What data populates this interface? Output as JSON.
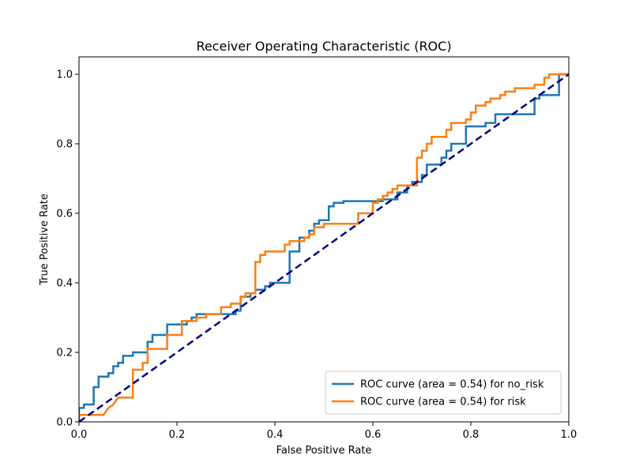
{
  "chart_data": {
    "type": "line",
    "title": "Receiver Operating Characteristic (ROC)",
    "xlabel": "False Positive Rate",
    "ylabel": "True Positive Rate",
    "xlim": [
      0.0,
      1.0
    ],
    "ylim": [
      0.0,
      1.05
    ],
    "xticks": [
      "0.0",
      "0.2",
      "0.4",
      "0.6",
      "0.8",
      "1.0"
    ],
    "yticks": [
      "0.0",
      "0.2",
      "0.4",
      "0.6",
      "0.8",
      "1.0"
    ],
    "grid": false,
    "legend_position": "lower-right",
    "series": [
      {
        "name": "ROC curve (area = 0.54) for no_risk",
        "color": "#1f77b4",
        "x": [
          0.0,
          0.0,
          0.01,
          0.01,
          0.03,
          0.03,
          0.04,
          0.04,
          0.06,
          0.06,
          0.07,
          0.07,
          0.08,
          0.08,
          0.09,
          0.09,
          0.11,
          0.11,
          0.14,
          0.14,
          0.15,
          0.15,
          0.18,
          0.18,
          0.22,
          0.22,
          0.23,
          0.23,
          0.24,
          0.24,
          0.27,
          0.27,
          0.32,
          0.32,
          0.33,
          0.33,
          0.35,
          0.35,
          0.36,
          0.36,
          0.38,
          0.38,
          0.39,
          0.39,
          0.43,
          0.43,
          0.45,
          0.45,
          0.47,
          0.47,
          0.48,
          0.48,
          0.49,
          0.49,
          0.51,
          0.51,
          0.52,
          0.52,
          0.54,
          0.54,
          0.62,
          0.62,
          0.65,
          0.65,
          0.67,
          0.67,
          0.68,
          0.68,
          0.7,
          0.7,
          0.71,
          0.71,
          0.74,
          0.74,
          0.75,
          0.75,
          0.76,
          0.76,
          0.79,
          0.79,
          0.83,
          0.83,
          0.85,
          0.85,
          0.93,
          0.93,
          0.94,
          0.94,
          0.96,
          0.96,
          0.98,
          0.98,
          1.0
        ],
        "y": [
          0.0,
          0.04,
          0.04,
          0.05,
          0.05,
          0.1,
          0.1,
          0.13,
          0.13,
          0.14,
          0.14,
          0.16,
          0.16,
          0.17,
          0.17,
          0.19,
          0.19,
          0.2,
          0.2,
          0.23,
          0.23,
          0.25,
          0.25,
          0.28,
          0.28,
          0.29,
          0.29,
          0.3,
          0.3,
          0.31,
          0.31,
          0.31,
          0.31,
          0.32,
          0.32,
          0.36,
          0.36,
          0.37,
          0.37,
          0.38,
          0.38,
          0.39,
          0.39,
          0.4,
          0.4,
          0.49,
          0.49,
          0.53,
          0.53,
          0.55,
          0.55,
          0.57,
          0.57,
          0.58,
          0.58,
          0.62,
          0.62,
          0.63,
          0.63,
          0.635,
          0.635,
          0.64,
          0.64,
          0.66,
          0.66,
          0.68,
          0.68,
          0.69,
          0.69,
          0.71,
          0.71,
          0.74,
          0.74,
          0.76,
          0.76,
          0.78,
          0.78,
          0.8,
          0.8,
          0.85,
          0.85,
          0.86,
          0.86,
          0.885,
          0.885,
          0.93,
          0.93,
          0.94,
          0.94,
          0.94,
          0.94,
          1.0,
          1.0
        ]
      },
      {
        "name": "ROC curve (area = 0.54) for risk",
        "color": "#ff7f0e",
        "x": [
          0.0,
          0.05,
          0.05,
          0.06,
          0.06,
          0.07,
          0.07,
          0.08,
          0.08,
          0.11,
          0.11,
          0.13,
          0.13,
          0.14,
          0.14,
          0.18,
          0.18,
          0.21,
          0.21,
          0.24,
          0.24,
          0.26,
          0.26,
          0.29,
          0.29,
          0.31,
          0.31,
          0.33,
          0.33,
          0.34,
          0.34,
          0.36,
          0.36,
          0.37,
          0.37,
          0.38,
          0.38,
          0.42,
          0.42,
          0.43,
          0.43,
          0.46,
          0.46,
          0.47,
          0.47,
          0.48,
          0.48,
          0.5,
          0.5,
          0.57,
          0.57,
          0.6,
          0.6,
          0.61,
          0.61,
          0.62,
          0.62,
          0.63,
          0.63,
          0.64,
          0.64,
          0.65,
          0.65,
          0.69,
          0.69,
          0.7,
          0.7,
          0.71,
          0.71,
          0.72,
          0.72,
          0.75,
          0.75,
          0.76,
          0.76,
          0.79,
          0.79,
          0.8,
          0.8,
          0.81,
          0.81,
          0.83,
          0.83,
          0.84,
          0.84,
          0.86,
          0.86,
          0.87,
          0.87,
          0.89,
          0.89,
          0.93,
          0.93,
          0.95,
          0.95,
          0.96,
          0.96,
          1.0
        ],
        "y": [
          0.02,
          0.02,
          0.02,
          0.04,
          0.04,
          0.05,
          0.05,
          0.07,
          0.07,
          0.07,
          0.15,
          0.15,
          0.17,
          0.17,
          0.21,
          0.21,
          0.25,
          0.25,
          0.29,
          0.29,
          0.3,
          0.3,
          0.31,
          0.31,
          0.33,
          0.33,
          0.34,
          0.34,
          0.36,
          0.36,
          0.37,
          0.37,
          0.46,
          0.46,
          0.48,
          0.48,
          0.49,
          0.49,
          0.51,
          0.51,
          0.52,
          0.52,
          0.53,
          0.53,
          0.54,
          0.54,
          0.56,
          0.56,
          0.57,
          0.57,
          0.6,
          0.6,
          0.63,
          0.63,
          0.64,
          0.64,
          0.65,
          0.65,
          0.66,
          0.66,
          0.67,
          0.67,
          0.68,
          0.68,
          0.76,
          0.76,
          0.78,
          0.78,
          0.8,
          0.8,
          0.82,
          0.82,
          0.84,
          0.84,
          0.86,
          0.86,
          0.87,
          0.87,
          0.89,
          0.89,
          0.91,
          0.91,
          0.92,
          0.92,
          0.93,
          0.93,
          0.94,
          0.94,
          0.95,
          0.95,
          0.96,
          0.96,
          0.97,
          0.97,
          0.99,
          0.99,
          1.0,
          1.0
        ]
      },
      {
        "name": "",
        "color": "#000080",
        "style": "dashed",
        "x": [
          0.0,
          1.0
        ],
        "y": [
          0.0,
          1.0
        ]
      }
    ]
  }
}
